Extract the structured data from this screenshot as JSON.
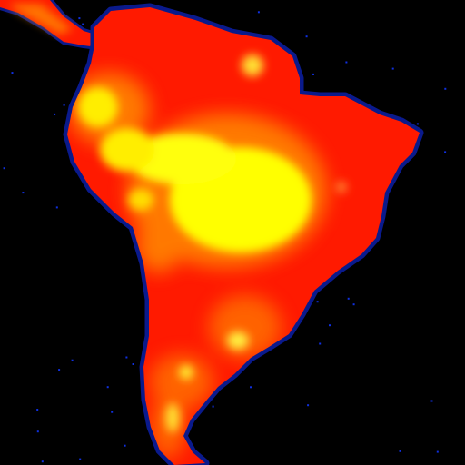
{
  "map": {
    "region": "South America",
    "projection": "unlabeled",
    "background_color": "#000000",
    "coast_outline_color": "#0a1a8c",
    "noise_dot_color": "#1030e0",
    "land_base_color": "#ff1a00",
    "hotspot_mid_color": "#ff7a00",
    "hotspot_peak_color": "#ffff00",
    "color_scale": [
      "#0000ff",
      "#ff0000",
      "#ff8000",
      "#ffff00"
    ],
    "labels": []
  }
}
